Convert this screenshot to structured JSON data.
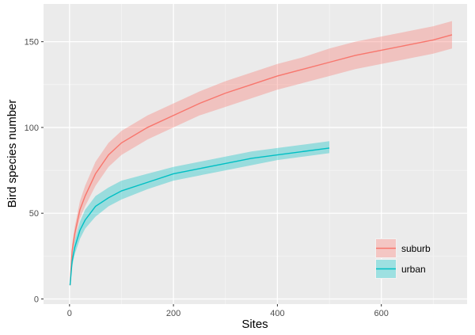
{
  "chart_data": {
    "type": "line",
    "title": "",
    "xlabel": "Sites",
    "ylabel": "Bird species number",
    "xlim": [
      -50,
      765
    ],
    "ylim": [
      -3,
      172
    ],
    "x_ticks": [
      0,
      200,
      400,
      600
    ],
    "y_ticks": [
      0,
      50,
      100,
      150
    ],
    "grid": true,
    "legend_position": "bottom-right",
    "series": [
      {
        "name": "suburb",
        "color": "#F8766D",
        "band_color": "#F8766D",
        "x": [
          1,
          5,
          10,
          20,
          30,
          50,
          75,
          100,
          150,
          200,
          250,
          300,
          350,
          400,
          450,
          500,
          550,
          600,
          650,
          700,
          736
        ],
        "y": [
          8,
          28,
          38,
          52,
          60,
          73,
          84,
          91,
          100,
          107,
          114,
          120,
          125,
          130,
          134,
          138,
          142,
          145,
          148,
          151,
          154
        ],
        "lower": [
          8,
          25,
          34,
          47,
          54,
          66,
          77,
          84,
          93,
          100,
          107,
          112,
          117,
          122,
          126,
          130,
          134,
          137,
          140,
          143,
          146
        ],
        "upper": [
          8,
          32,
          42,
          57,
          66,
          80,
          91,
          98,
          107,
          114,
          121,
          127,
          132,
          137,
          141,
          146,
          150,
          153,
          156,
          159,
          162
        ]
      },
      {
        "name": "urban",
        "color": "#00BFC4",
        "band_color": "#00BFC4",
        "x": [
          1,
          5,
          10,
          20,
          30,
          50,
          75,
          100,
          150,
          200,
          250,
          300,
          350,
          400,
          450,
          500
        ],
        "y": [
          8,
          22,
          30,
          40,
          46,
          54,
          59,
          63,
          68,
          73,
          76,
          79,
          82,
          84,
          86,
          88
        ],
        "lower": [
          8,
          19,
          26,
          35,
          41,
          48,
          54,
          58,
          64,
          69,
          72,
          75,
          78,
          81,
          83,
          85
        ],
        "upper": [
          8,
          25,
          34,
          45,
          52,
          60,
          65,
          69,
          73,
          77,
          80,
          83,
          86,
          88,
          90,
          92
        ]
      }
    ]
  }
}
